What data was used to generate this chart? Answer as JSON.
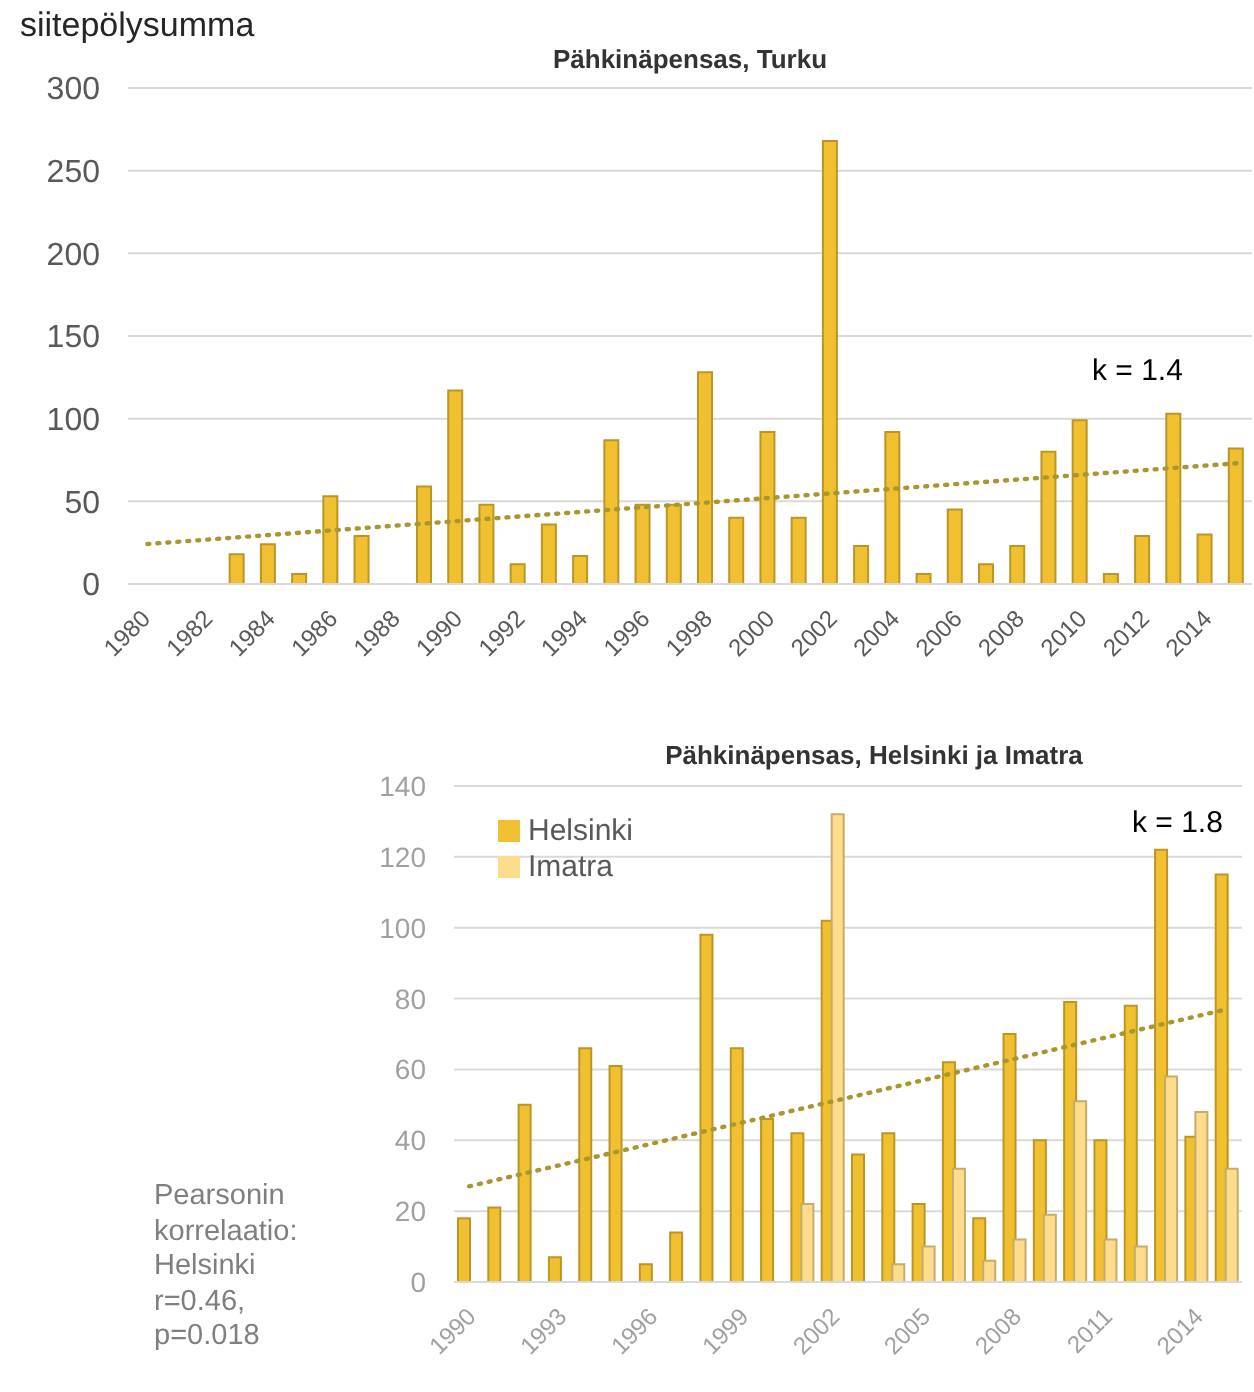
{
  "chart_data": [
    {
      "type": "bar",
      "title": "Pähkinäpensas, Turku",
      "ylabel": "siitepölysumma",
      "x": [
        1983,
        1984,
        1985,
        1986,
        1987,
        1988,
        1989,
        1990,
        1991,
        1992,
        1993,
        1994,
        1995,
        1996,
        1997,
        1998,
        1999,
        2000,
        2001,
        2002,
        2003,
        2004,
        2005,
        2006,
        2007,
        2008,
        2009,
        2010,
        2011,
        2012,
        2013,
        2014,
        2015
      ],
      "series": [
        {
          "color": "#f0c030",
          "values": [
            18,
            24,
            6,
            53,
            29,
            null,
            59,
            117,
            48,
            12,
            36,
            17,
            87,
            48,
            48,
            128,
            40,
            92,
            40,
            268,
            23,
            92,
            6,
            45,
            12,
            23,
            80,
            99,
            6,
            29,
            103,
            30,
            82
          ]
        },
        {
          "type": "line",
          "x": [
            1980,
            2015
          ],
          "values": [
            24,
            73
          ],
          "color": "#a8962e",
          "line_style": "dotted"
        }
      ],
      "xlim": [
        1979.5,
        2015.5
      ],
      "xticks": [
        1980,
        1982,
        1984,
        1986,
        1988,
        1990,
        1992,
        1994,
        1996,
        1998,
        2000,
        2002,
        2004,
        2006,
        2008,
        2010,
        2012,
        2014
      ],
      "ylim": [
        0,
        300
      ],
      "yticks": [
        0,
        50,
        100,
        150,
        200,
        250,
        300
      ],
      "grid": "y",
      "annotations": [
        "k = 1.4"
      ]
    },
    {
      "type": "bar",
      "title": "Pähkinäpensas, Helsinki ja Imatra",
      "x": [
        1990,
        1991,
        1992,
        1993,
        1994,
        1995,
        1996,
        1997,
        1998,
        1999,
        2000,
        2001,
        2002,
        2003,
        2004,
        2005,
        2006,
        2007,
        2008,
        2009,
        2010,
        2011,
        2012,
        2013,
        2014,
        2015
      ],
      "series": [
        {
          "name": "Helsinki",
          "color": "#f0c030",
          "values": [
            18,
            21,
            50,
            7,
            66,
            61,
            5,
            14,
            98,
            66,
            46,
            42,
            102,
            36,
            42,
            22,
            62,
            18,
            70,
            40,
            79,
            40,
            78,
            122,
            41,
            115
          ]
        },
        {
          "name": "Imatra",
          "color": "#fddc8c",
          "values": [
            null,
            null,
            null,
            null,
            null,
            null,
            null,
            null,
            null,
            null,
            null,
            22,
            132,
            null,
            5,
            10,
            32,
            6,
            12,
            19,
            51,
            12,
            10,
            58,
            48,
            32
          ]
        },
        {
          "type": "line",
          "x": [
            1990,
            2015
          ],
          "values": [
            27,
            77
          ],
          "color": "#a8962e",
          "line_style": "dotted"
        }
      ],
      "xlim": [
        1989.5,
        2015.5
      ],
      "xticks": [
        1990,
        1993,
        1996,
        1999,
        2002,
        2005,
        2008,
        2011,
        2014
      ],
      "ylim": [
        0,
        140
      ],
      "yticks": [
        0,
        20,
        40,
        60,
        80,
        100,
        120,
        140
      ],
      "grid": "y",
      "legend": "top left",
      "annotations": [
        "k = 1.8",
        "Pearsonin korrelaatio: Helsinki r=0.46, p=0.018"
      ]
    }
  ]
}
